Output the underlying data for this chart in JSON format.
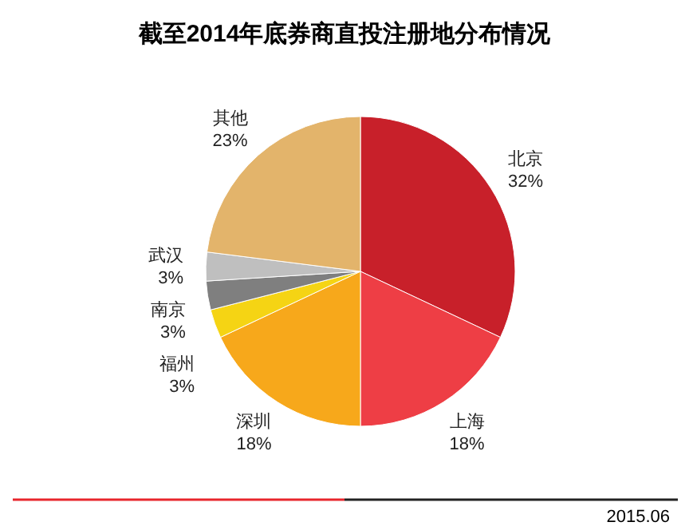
{
  "chart_data": {
    "type": "pie",
    "title": "截至2014年底券商直投注册地分布情况",
    "categories": [
      "北京",
      "上海",
      "深圳",
      "福州",
      "南京",
      "武汉",
      "其他"
    ],
    "values": [
      32,
      18,
      18,
      3,
      3,
      3,
      23
    ],
    "value_labels": [
      "32%",
      "18%",
      "18%",
      "3%",
      "3%",
      "3%",
      "23%"
    ],
    "colors": [
      "#c8202a",
      "#ee3e45",
      "#f7a81b",
      "#f5d414",
      "#7f7f7f",
      "#bfbfbf",
      "#e3b46b"
    ],
    "annotations": [
      "2015.06"
    ]
  }
}
